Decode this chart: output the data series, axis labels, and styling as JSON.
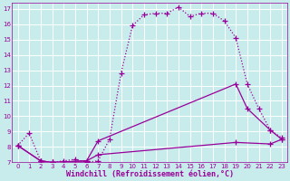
{
  "xlabel": "Windchill (Refroidissement éolien,°C)",
  "bg_color": "#c8ecec",
  "line_color": "#990099",
  "grid_color": "#ffffff",
  "xlim": [
    -0.5,
    23.5
  ],
  "ylim": [
    7,
    17.4
  ],
  "xticks": [
    0,
    1,
    2,
    3,
    4,
    5,
    6,
    7,
    8,
    9,
    10,
    11,
    12,
    13,
    14,
    15,
    16,
    17,
    18,
    19,
    20,
    21,
    22,
    23
  ],
  "yticks": [
    7,
    8,
    9,
    10,
    11,
    12,
    13,
    14,
    15,
    16,
    17
  ],
  "curve1_x": [
    0,
    1,
    2,
    3,
    4,
    5,
    6,
    7,
    8,
    9,
    10,
    11,
    12,
    13,
    14,
    15,
    16,
    17,
    18,
    19,
    20,
    21,
    22,
    23
  ],
  "curve1_y": [
    8.1,
    8.9,
    7.1,
    7.0,
    7.1,
    7.2,
    7.0,
    7.1,
    8.5,
    12.8,
    15.9,
    16.6,
    16.7,
    16.7,
    17.1,
    16.5,
    16.7,
    16.7,
    16.2,
    15.1,
    12.1,
    10.5,
    9.1,
    8.6
  ],
  "curve2_x": [
    0,
    2,
    3,
    6,
    7,
    19,
    20,
    22,
    23
  ],
  "curve2_y": [
    8.1,
    7.1,
    7.0,
    7.1,
    8.4,
    12.1,
    10.5,
    9.1,
    8.5
  ],
  "curve3_x": [
    0,
    2,
    3,
    6,
    7,
    19,
    22,
    23
  ],
  "curve3_y": [
    8.1,
    7.1,
    7.0,
    7.1,
    7.5,
    8.3,
    8.2,
    8.5
  ],
  "marker": "+",
  "markersize": 4,
  "linewidth": 0.9,
  "tick_fontsize": 5,
  "xlabel_fontsize": 6,
  "tick_color": "#990099",
  "xlabel_color": "#990099"
}
